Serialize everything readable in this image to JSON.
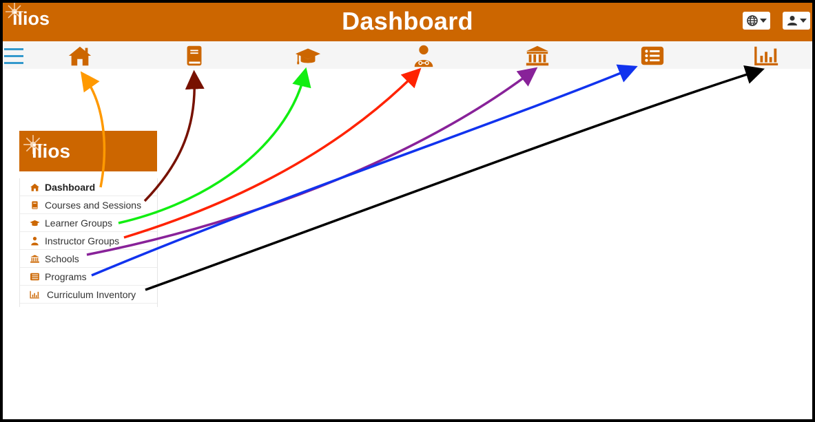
{
  "app": {
    "logo_text": "ilios",
    "page_title": "Dashboard"
  },
  "colors": {
    "brand_orange": "#cc6600",
    "hamburger_blue": "#3399cc"
  },
  "header": {
    "language_button_icon": "globe-icon",
    "user_button_icon": "user-icon"
  },
  "navbar": {
    "icons": [
      "home-icon",
      "book-icon",
      "graduation-cap-icon",
      "user-doctor-icon",
      "university-icon",
      "list-icon",
      "bar-chart-icon"
    ]
  },
  "side_menu": {
    "items": [
      {
        "label": "Dashboard",
        "icon": "home-icon"
      },
      {
        "label": "Courses and Sessions",
        "icon": "book-icon"
      },
      {
        "label": "Learner Groups",
        "icon": "graduation-cap-icon"
      },
      {
        "label": "Instructor Groups",
        "icon": "user-doctor-icon"
      },
      {
        "label": "Schools",
        "icon": "university-icon"
      },
      {
        "label": "Programs",
        "icon": "list-icon"
      },
      {
        "label": "Curriculum Inventory",
        "icon": "bar-chart-icon"
      }
    ]
  },
  "annotation_arrows": {
    "colors": [
      "#ff9900",
      "#771100",
      "#11ee11",
      "#ff2200",
      "#882299",
      "#1133ee",
      "#000000"
    ]
  }
}
